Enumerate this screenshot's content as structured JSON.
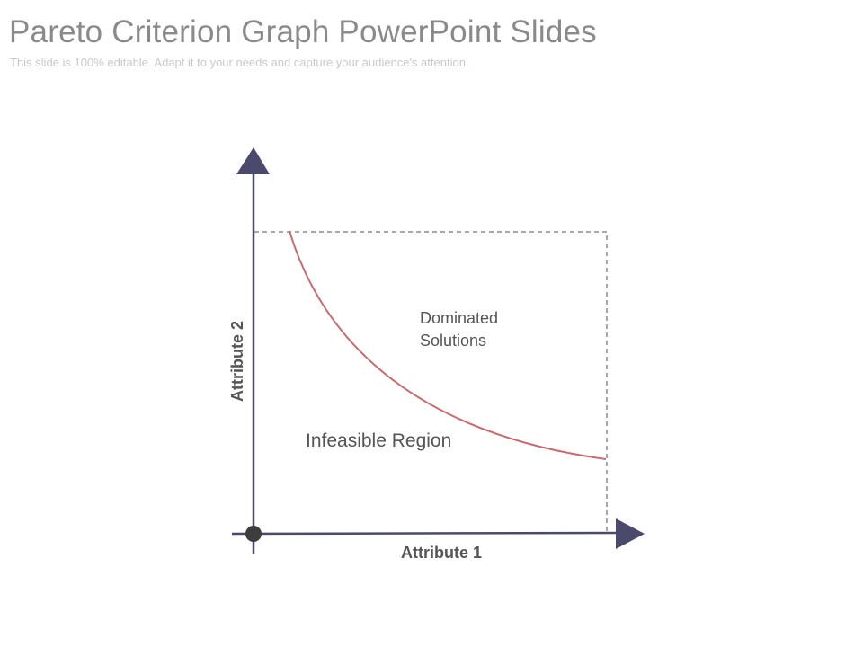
{
  "slide": {
    "title": "Pareto Criterion Graph PowerPoint Slides",
    "subtitle": "This slide is 100% editable. Adapt it to your needs and capture your audience's attention."
  },
  "diagram": {
    "x_axis_label": "Attribute 1",
    "y_axis_label": "Attribute 2",
    "region_dominated": [
      "Dominated",
      "Solutions"
    ],
    "region_infeasible": "Infeasible Region"
  },
  "colors": {
    "axis": "#4b4a6c",
    "curve": "#c96a6f",
    "boundary_dashed": "#a8a8a8",
    "title_text": "#8a8a8a",
    "subtitle_text": "#c9c9c9",
    "label_text": "#555555"
  }
}
